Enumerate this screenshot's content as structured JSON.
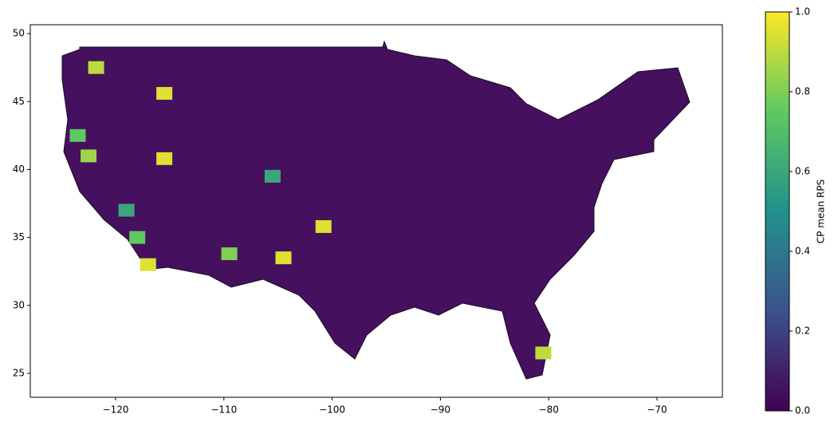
{
  "chart_data": {
    "type": "choropleth",
    "xlim": [
      -127.88,
      -63.96
    ],
    "ylim": [
      23.24,
      50.65
    ],
    "xticks": [
      {
        "value": -120,
        "label": "−120"
      },
      {
        "value": -110,
        "label": "−110"
      },
      {
        "value": -100,
        "label": "−100"
      },
      {
        "value": -90,
        "label": "−90"
      },
      {
        "value": -80,
        "label": "−80"
      },
      {
        "value": -70,
        "label": "−70"
      }
    ],
    "yticks": [
      25,
      30,
      35,
      40,
      45,
      50
    ],
    "regions": {
      "lon": [
        -115.5,
        -115.5,
        -121.8,
        -123.5,
        -122.5,
        -117,
        -100.8,
        -80.5,
        -118,
        -109.5,
        -105.5,
        -104.5,
        -119
      ],
      "lat": [
        45.6,
        40.8,
        47.5,
        42.5,
        41,
        33,
        35.8,
        26.5,
        35,
        33.8,
        39.5,
        33.5,
        37
      ],
      "values": [
        0.95,
        0.95,
        0.9,
        0.75,
        0.85,
        0.95,
        0.95,
        0.9,
        0.75,
        0.8,
        0.6,
        0.95,
        0.6
      ]
    },
    "colorbar": {
      "label": "CP mean RPS",
      "lim": [
        0,
        1
      ],
      "ticks": [
        {
          "value": 0,
          "label": "0.0"
        },
        {
          "value": 0.2,
          "label": "0.2"
        },
        {
          "value": 0.4,
          "label": "0.4"
        },
        {
          "value": 0.6,
          "label": "0.6"
        },
        {
          "value": 0.8,
          "label": "0.8"
        },
        {
          "value": 1,
          "label": "1.0"
        }
      ]
    }
  }
}
